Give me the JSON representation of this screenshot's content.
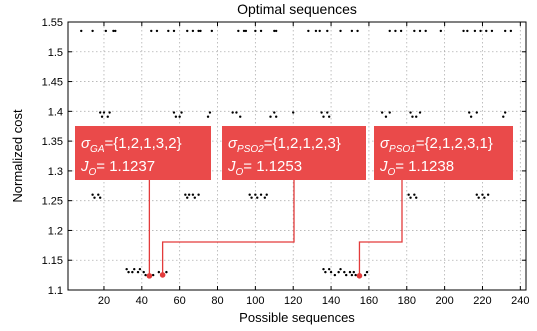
{
  "chart_data": {
    "type": "scatter",
    "title": "Optimal sequences",
    "xlabel": "Possible sequences",
    "ylabel": "Normalized cost",
    "xlim": [
      1,
      243
    ],
    "ylim": [
      1.1,
      1.55
    ],
    "xticks": [
      20,
      40,
      60,
      80,
      100,
      120,
      140,
      160,
      180,
      200,
      220,
      240
    ],
    "yticks": [
      1.1,
      1.15,
      1.2,
      1.25,
      1.3,
      1.35,
      1.4,
      1.45,
      1.5,
      1.55
    ],
    "grid": true,
    "marker_color": "#000000",
    "highlight_color": "#e33b3b",
    "box_color": "#ea4a4a",
    "series": [
      {
        "values": [
          [
            8,
            1.535
          ],
          [
            14,
            1.535
          ],
          [
            21,
            1.535
          ],
          [
            25,
            1.535
          ],
          [
            26,
            1.535
          ],
          [
            45,
            1.535
          ],
          [
            48,
            1.535
          ],
          [
            54,
            1.535
          ],
          [
            57,
            1.535
          ],
          [
            64,
            1.535
          ],
          [
            67,
            1.535
          ],
          [
            70,
            1.535
          ],
          [
            71,
            1.535
          ],
          [
            77,
            1.535
          ],
          [
            91,
            1.535
          ],
          [
            94,
            1.535
          ],
          [
            95,
            1.535
          ],
          [
            100,
            1.535
          ],
          [
            103,
            1.535
          ],
          [
            110,
            1.535
          ],
          [
            111,
            1.535
          ],
          [
            128,
            1.535
          ],
          [
            132,
            1.535
          ],
          [
            134,
            1.535
          ],
          [
            138,
            1.535
          ],
          [
            145,
            1.535
          ],
          [
            151,
            1.535
          ],
          [
            154,
            1.535
          ],
          [
            171,
            1.535
          ],
          [
            174,
            1.535
          ],
          [
            177,
            1.535
          ],
          [
            184,
            1.535
          ],
          [
            187,
            1.535
          ],
          [
            190,
            1.535
          ],
          [
            198,
            1.535
          ],
          [
            210,
            1.535
          ],
          [
            212,
            1.535
          ],
          [
            216,
            1.535
          ],
          [
            219,
            1.535
          ],
          [
            222,
            1.535
          ],
          [
            225,
            1.535
          ],
          [
            232,
            1.535
          ],
          [
            235,
            1.535
          ],
          [
            18,
            1.398
          ],
          [
            19,
            1.391
          ],
          [
            20,
            1.398
          ],
          [
            22,
            1.391
          ],
          [
            23,
            1.398
          ],
          [
            57,
            1.398
          ],
          [
            58,
            1.391
          ],
          [
            60,
            1.391
          ],
          [
            61,
            1.398
          ],
          [
            75,
            1.391
          ],
          [
            76,
            1.398
          ],
          [
            88,
            1.398
          ],
          [
            90,
            1.398
          ],
          [
            92,
            1.391
          ],
          [
            108,
            1.391
          ],
          [
            110,
            1.398
          ],
          [
            111,
            1.391
          ],
          [
            120,
            1.398
          ],
          [
            135,
            1.398
          ],
          [
            136,
            1.391
          ],
          [
            138,
            1.398
          ],
          [
            139,
            1.391
          ],
          [
            167,
            1.398
          ],
          [
            169,
            1.391
          ],
          [
            171,
            1.398
          ],
          [
            182,
            1.398
          ],
          [
            183,
            1.391
          ],
          [
            185,
            1.391
          ],
          [
            187,
            1.398
          ],
          [
            213,
            1.398
          ],
          [
            214,
            1.391
          ],
          [
            217,
            1.398
          ],
          [
            231,
            1.391
          ],
          [
            232,
            1.398
          ],
          [
            14,
            1.26
          ],
          [
            15,
            1.255
          ],
          [
            17,
            1.26
          ],
          [
            18,
            1.255
          ],
          [
            63,
            1.26
          ],
          [
            64,
            1.255
          ],
          [
            65,
            1.26
          ],
          [
            67,
            1.26
          ],
          [
            68,
            1.255
          ],
          [
            70,
            1.26
          ],
          [
            97,
            1.26
          ],
          [
            98,
            1.255
          ],
          [
            100,
            1.26
          ],
          [
            101,
            1.255
          ],
          [
            103,
            1.26
          ],
          [
            105,
            1.255
          ],
          [
            106,
            1.26
          ],
          [
            181,
            1.26
          ],
          [
            182,
            1.255
          ],
          [
            184,
            1.26
          ],
          [
            185,
            1.255
          ],
          [
            217,
            1.26
          ],
          [
            218,
            1.255
          ],
          [
            220,
            1.26
          ],
          [
            221,
            1.255
          ],
          [
            223,
            1.26
          ],
          [
            32,
            1.135
          ],
          [
            33,
            1.13
          ],
          [
            35,
            1.13
          ],
          [
            36,
            1.135
          ],
          [
            38,
            1.13
          ],
          [
            39,
            1.135
          ],
          [
            41,
            1.13
          ],
          [
            42,
            1.125
          ],
          [
            46,
            1.125
          ],
          [
            49,
            1.13
          ],
          [
            53,
            1.13
          ],
          [
            136,
            1.135
          ],
          [
            137,
            1.13
          ],
          [
            139,
            1.135
          ],
          [
            140,
            1.13
          ],
          [
            142,
            1.125
          ],
          [
            144,
            1.13
          ],
          [
            145,
            1.135
          ],
          [
            147,
            1.13
          ],
          [
            148,
            1.125
          ],
          [
            150,
            1.13
          ],
          [
            151,
            1.125
          ],
          [
            152,
            1.13
          ],
          [
            153,
            1.125
          ],
          [
            158,
            1.125
          ],
          [
            159,
            1.13
          ]
        ]
      }
    ],
    "highlighted": [
      {
        "x": 44,
        "y": 1.1237
      },
      {
        "x": 51,
        "y": 1.1253
      },
      {
        "x": 155,
        "y": 1.1238
      }
    ],
    "annotations": [
      {
        "sigma": "σ",
        "sub": "GA",
        "seq": "={1,2,1,3,2}",
        "j": "J",
        "jsub": "O",
        "jval": "= 1.1237"
      },
      {
        "sigma": "σ",
        "sub": "PSO2",
        "seq": "={1,2,1,2,3}",
        "j": "J",
        "jsub": "O",
        "jval": "= 1.1253"
      },
      {
        "sigma": "σ",
        "sub": "PSO1",
        "seq": "={2,1,2,3,1}",
        "j": "J",
        "jsub": "O",
        "jval": "= 1.1238"
      }
    ]
  }
}
